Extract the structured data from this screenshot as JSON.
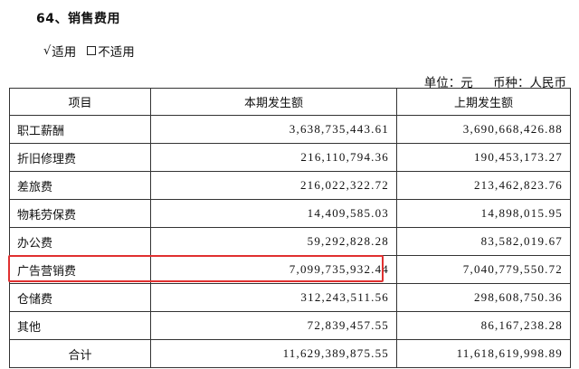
{
  "heading": "64、销售费用",
  "applicability": {
    "check_mark": "√",
    "applicable": "适用",
    "not_applicable": "不适用"
  },
  "unit_line": {
    "unit": "单位：元",
    "currency": "币种：人民币"
  },
  "table": {
    "headers": [
      "项目",
      "本期发生额",
      "上期发生额"
    ],
    "rows": [
      {
        "item": "职工薪酬",
        "current": "3,638,735,443.61",
        "previous": "3,690,668,426.88"
      },
      {
        "item": "折旧修理费",
        "current": "216,110,794.36",
        "previous": "190,453,173.27"
      },
      {
        "item": "差旅费",
        "current": "216,022,322.72",
        "previous": "213,462,823.76"
      },
      {
        "item": "物耗劳保费",
        "current": "14,409,585.03",
        "previous": "14,898,015.95"
      },
      {
        "item": "办公费",
        "current": "59,292,828.28",
        "previous": "83,582,019.67"
      },
      {
        "item": "广告营销费",
        "current": "7,099,735,932.44",
        "previous": "7,040,779,550.72"
      },
      {
        "item": "仓储费",
        "current": "312,243,511.56",
        "previous": "298,608,750.36"
      },
      {
        "item": "其他",
        "current": "72,839,457.55",
        "previous": "86,167,238.28"
      }
    ],
    "total": {
      "item": "合计",
      "current": "11,629,389,875.55",
      "previous": "11,618,619,998.89"
    }
  },
  "highlight_color": "#e03030"
}
